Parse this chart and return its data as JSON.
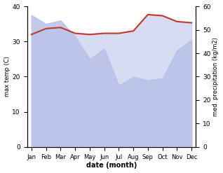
{
  "months": [
    "Jan",
    "Feb",
    "Mar",
    "Apr",
    "May",
    "Jun",
    "Jul",
    "Aug",
    "Sep",
    "Oct",
    "Nov",
    "Dec"
  ],
  "max_temp": [
    37.5,
    35.0,
    36.0,
    31.5,
    25.0,
    28.0,
    17.5,
    20.0,
    19.0,
    19.5,
    27.5,
    30.5
  ],
  "med_precip": [
    48.0,
    50.5,
    51.0,
    48.5,
    48.0,
    48.5,
    48.5,
    49.5,
    56.5,
    56.0,
    53.5,
    53.0
  ],
  "temp_ylim": [
    0,
    40
  ],
  "precip_ylim": [
    0,
    60
  ],
  "fill_color": "#b8c0e8",
  "line_color": "#c0392b",
  "xlabel": "date (month)",
  "ylabel_left": "max temp (C)",
  "ylabel_right": "med. precipitation (kg/m2)",
  "line_width": 1.5
}
